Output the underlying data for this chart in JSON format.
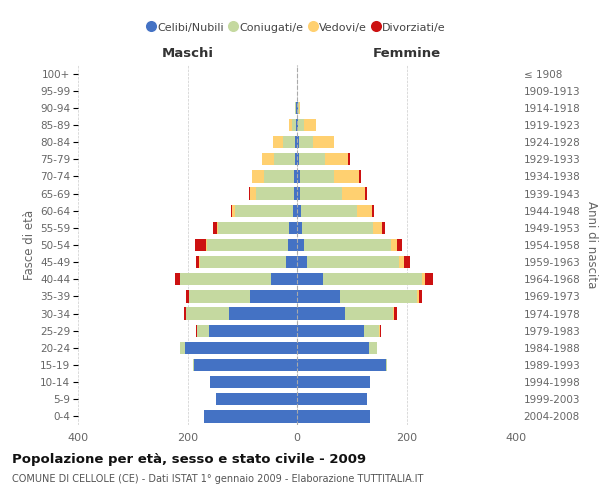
{
  "age_groups": [
    "0-4",
    "5-9",
    "10-14",
    "15-19",
    "20-24",
    "25-29",
    "30-34",
    "35-39",
    "40-44",
    "45-49",
    "50-54",
    "55-59",
    "60-64",
    "65-69",
    "70-74",
    "75-79",
    "80-84",
    "85-89",
    "90-94",
    "95-99",
    "100+"
  ],
  "birth_years": [
    "2004-2008",
    "1999-2003",
    "1994-1998",
    "1989-1993",
    "1984-1988",
    "1979-1983",
    "1974-1978",
    "1969-1973",
    "1964-1968",
    "1959-1963",
    "1954-1958",
    "1949-1953",
    "1944-1948",
    "1939-1943",
    "1934-1938",
    "1929-1933",
    "1924-1928",
    "1919-1923",
    "1914-1918",
    "1909-1913",
    "≤ 1908"
  ],
  "maschi": {
    "celibi": [
      170,
      148,
      158,
      188,
      205,
      160,
      125,
      85,
      48,
      20,
      17,
      14,
      8,
      5,
      5,
      4,
      3,
      2,
      1,
      0,
      0
    ],
    "coniugati": [
      0,
      0,
      0,
      2,
      8,
      22,
      78,
      112,
      165,
      158,
      148,
      130,
      105,
      70,
      55,
      38,
      22,
      8,
      2,
      0,
      0
    ],
    "vedovi": [
      0,
      0,
      0,
      0,
      0,
      0,
      0,
      1,
      1,
      1,
      2,
      3,
      5,
      10,
      22,
      22,
      18,
      5,
      1,
      0,
      0
    ],
    "divorziati": [
      0,
      0,
      0,
      0,
      1,
      2,
      3,
      5,
      8,
      5,
      20,
      6,
      3,
      3,
      1,
      0,
      0,
      0,
      0,
      0,
      0
    ]
  },
  "femmine": {
    "nubili": [
      133,
      127,
      133,
      162,
      132,
      122,
      88,
      78,
      47,
      18,
      13,
      10,
      8,
      5,
      5,
      4,
      3,
      2,
      1,
      0,
      0
    ],
    "coniugate": [
      0,
      0,
      0,
      3,
      14,
      28,
      88,
      142,
      182,
      168,
      158,
      128,
      102,
      78,
      62,
      48,
      27,
      10,
      2,
      0,
      0
    ],
    "vedove": [
      0,
      0,
      0,
      0,
      0,
      1,
      2,
      3,
      5,
      9,
      12,
      17,
      27,
      42,
      47,
      42,
      37,
      22,
      3,
      0,
      0
    ],
    "divorziate": [
      0,
      0,
      0,
      0,
      1,
      2,
      5,
      5,
      15,
      12,
      8,
      5,
      3,
      3,
      3,
      2,
      0,
      0,
      0,
      0,
      0
    ]
  },
  "colors": {
    "celibi": "#4472C4",
    "coniugati": "#C5D9A0",
    "vedovi": "#FFD070",
    "divorziati": "#CC1111"
  },
  "xlim": 400,
  "title": "Popolazione per età, sesso e stato civile - 2009",
  "subtitle": "COMUNE DI CELLOLE (CE) - Dati ISTAT 1° gennaio 2009 - Elaborazione TUTTITALIA.IT",
  "ylabel_left": "Fasce di età",
  "ylabel_right": "Anni di nascita",
  "xlabel_left": "Maschi",
  "xlabel_right": "Femmine",
  "bg_color": "#ffffff",
  "grid_color": "#cccccc",
  "legend_labels": [
    "Celibi/Nubili",
    "Coniugati/e",
    "Vedovi/e",
    "Divorziati/e"
  ]
}
